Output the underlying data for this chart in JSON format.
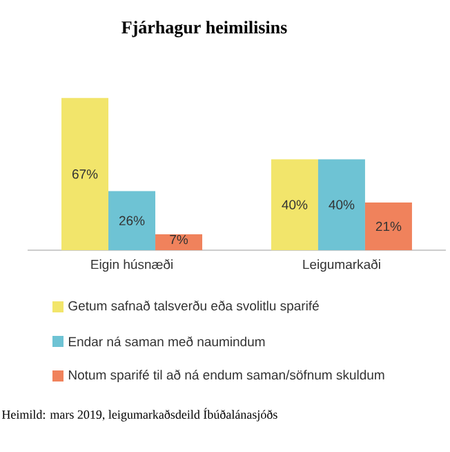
{
  "chart_data": {
    "type": "bar",
    "title": "Fjárhagur heimilisins",
    "categories": [
      "Eigin húsnæði",
      "Leigumarkaði"
    ],
    "series": [
      {
        "name": "Getum safnað talsverðu eða svolitlu sparifé",
        "color": "#f2e56b",
        "values": [
          67,
          40
        ],
        "value_labels": [
          "67%",
          "40%"
        ]
      },
      {
        "name": "Endar ná saman með naumindum",
        "color": "#6ec3d4",
        "values": [
          26,
          40
        ],
        "value_labels": [
          "26%",
          "40%"
        ]
      },
      {
        "name": "Notum sparifé til að ná endum saman/söfnum skuldum",
        "color": "#f0825c",
        "values": [
          7,
          21
        ],
        "value_labels": [
          "7%",
          "21%"
        ]
      }
    ],
    "legend": "bottom",
    "annotations": [
      "Heimild: mars 2019, leigumarkaðsdeild Íbúðalánasjóðs"
    ]
  }
}
